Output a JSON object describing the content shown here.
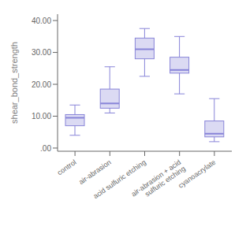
{
  "chart_data": {
    "type": "box",
    "categories": [
      "control",
      "air-abrasion",
      "acid sulfuric etching",
      "air-abrasion + acid\nsulfuric etching",
      "cyanoacrylate"
    ],
    "boxes": [
      {
        "whislo": 4.0,
        "q1": 7.0,
        "med": 9.5,
        "q3": 10.5,
        "whishi": 13.5
      },
      {
        "whislo": 11.0,
        "q1": 12.5,
        "med": 14.0,
        "q3": 18.5,
        "whishi": 25.5
      },
      {
        "whislo": 22.5,
        "q1": 28.0,
        "med": 31.0,
        "q3": 34.5,
        "whishi": 37.5
      },
      {
        "whislo": 17.0,
        "q1": 23.5,
        "med": 24.5,
        "q3": 28.5,
        "whishi": 35.0
      },
      {
        "whislo": 2.0,
        "q1": 3.5,
        "med": 4.5,
        "q3": 8.5,
        "whishi": 15.5
      }
    ],
    "ylabel": "shear_bond_strength",
    "ylim": [
      -1,
      42
    ],
    "yticks": [
      {
        "value": 0,
        "label": ".00"
      },
      {
        "value": 10,
        "label": "10.00"
      },
      {
        "value": 20,
        "label": "20.00"
      },
      {
        "value": 30,
        "label": "30.00"
      },
      {
        "value": 40,
        "label": "40.00"
      }
    ],
    "grid": false,
    "color": "#8884d8"
  }
}
